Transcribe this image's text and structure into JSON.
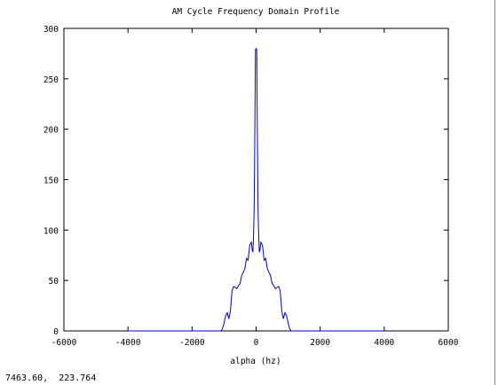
{
  "status": {
    "coordinate_readout": "7463.60,  223.764"
  },
  "colors": {
    "series": "#0000cc",
    "axes": "#000000",
    "background": "#ffffff"
  },
  "chart_data": {
    "type": "line",
    "title": "AM Cycle Frequency Domain Profile",
    "xlabel": "alpha (hz)",
    "ylabel": "",
    "xlim": [
      -6000,
      6000
    ],
    "ylim": [
      0,
      300
    ],
    "xticks": [
      -6000,
      -4000,
      -2000,
      0,
      2000,
      4000,
      6000
    ],
    "yticks": [
      0,
      50,
      100,
      150,
      200,
      250,
      300
    ],
    "grid": false,
    "series": [
      {
        "name": "",
        "x": [
          -4000,
          -1100,
          -1050,
          -1000,
          -950,
          -900,
          -850,
          -800,
          -750,
          -700,
          -650,
          -600,
          -550,
          -500,
          -450,
          -400,
          -350,
          -300,
          -250,
          -200,
          -150,
          -120,
          -100,
          -80,
          -60,
          -40,
          -20,
          0,
          20,
          40,
          60,
          80,
          100,
          120,
          150,
          200,
          250,
          300,
          350,
          400,
          450,
          500,
          550,
          600,
          650,
          700,
          750,
          800,
          850,
          900,
          950,
          1000,
          1050,
          1100,
          4000
        ],
        "y": [
          0,
          0,
          2,
          8,
          15,
          18,
          12,
          20,
          40,
          44,
          43,
          42,
          45,
          47,
          55,
          58,
          62,
          72,
          70,
          85,
          88,
          80,
          78,
          95,
          120,
          200,
          279,
          280,
          279,
          200,
          120,
          95,
          78,
          80,
          88,
          85,
          70,
          72,
          62,
          58,
          55,
          47,
          45,
          42,
          43,
          44,
          40,
          20,
          12,
          18,
          15,
          8,
          2,
          0,
          0
        ]
      }
    ]
  }
}
